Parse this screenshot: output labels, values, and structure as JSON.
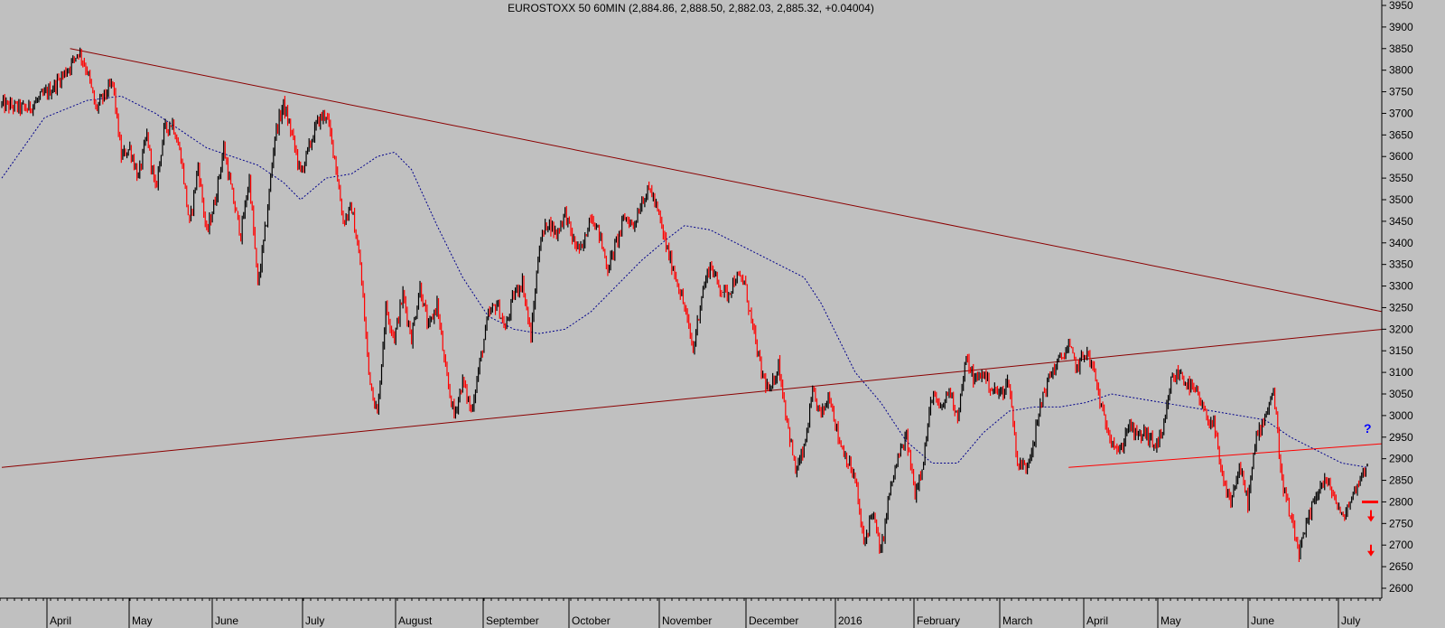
{
  "title": "EUROSTOXX 50 60MIN (2,884.86, 2,888.50, 2,882.03, 2,885.32, +0.04004)",
  "chart_data": {
    "type": "candlestick",
    "title": "EUROSTOXX 50 60MIN (2,884.86, 2,888.50, 2,882.03, 2,885.32, +0.04004)",
    "ylim": [
      2600,
      3950
    ],
    "y_ticks": [
      3950,
      3900,
      3850,
      3800,
      3750,
      3700,
      3650,
      3600,
      3550,
      3500,
      3450,
      3400,
      3350,
      3300,
      3250,
      3200,
      3150,
      3100,
      3050,
      3000,
      2950,
      2900,
      2850,
      2800,
      2750,
      2700,
      2650,
      2600
    ],
    "y_tick_labels": [
      "3950",
      "3900",
      "3850",
      "3800",
      "3750",
      "3700",
      "3650",
      "3600",
      "3550",
      "3500",
      "3450",
      "3400",
      "3350",
      "3300",
      "3250",
      "3200",
      "3150",
      "3100",
      "3050",
      "3000",
      "2950",
      "2900",
      "2850",
      "2800",
      "2750",
      "2700",
      "2650",
      "2600"
    ],
    "x_labels": [
      "April",
      "May",
      "June",
      "July",
      "August",
      "September",
      "October",
      "November",
      "December",
      "2016",
      "February",
      "March",
      "April",
      "May",
      "June",
      "July"
    ],
    "price_path": [
      [
        0,
        3720
      ],
      [
        3,
        3710
      ],
      [
        6,
        3760
      ],
      [
        8,
        3810
      ],
      [
        9,
        3845
      ],
      [
        10,
        3800
      ],
      [
        11,
        3710
      ],
      [
        12,
        3740
      ],
      [
        13,
        3770
      ],
      [
        14,
        3600
      ],
      [
        15,
        3620
      ],
      [
        16,
        3550
      ],
      [
        17,
        3650
      ],
      [
        18,
        3520
      ],
      [
        19,
        3660
      ],
      [
        20,
        3680
      ],
      [
        21,
        3600
      ],
      [
        22,
        3440
      ],
      [
        23,
        3580
      ],
      [
        24,
        3420
      ],
      [
        25,
        3500
      ],
      [
        26,
        3620
      ],
      [
        27,
        3510
      ],
      [
        28,
        3420
      ],
      [
        29,
        3550
      ],
      [
        30,
        3300
      ],
      [
        31,
        3450
      ],
      [
        32,
        3650
      ],
      [
        33,
        3720
      ],
      [
        34,
        3650
      ],
      [
        35,
        3560
      ],
      [
        36,
        3620
      ],
      [
        37,
        3680
      ],
      [
        38,
        3700
      ],
      [
        39,
        3600
      ],
      [
        40,
        3450
      ],
      [
        41,
        3480
      ],
      [
        42,
        3350
      ],
      [
        43,
        3100
      ],
      [
        44,
        3000
      ],
      [
        45,
        3250
      ],
      [
        46,
        3180
      ],
      [
        47,
        3280
      ],
      [
        48,
        3180
      ],
      [
        49,
        3300
      ],
      [
        50,
        3200
      ],
      [
        51,
        3260
      ],
      [
        52,
        3100
      ],
      [
        53,
        3000
      ],
      [
        54,
        3080
      ],
      [
        55,
        3010
      ],
      [
        56,
        3120
      ],
      [
        57,
        3230
      ],
      [
        58,
        3260
      ],
      [
        59,
        3200
      ],
      [
        60,
        3280
      ],
      [
        61,
        3310
      ],
      [
        62,
        3180
      ],
      [
        63,
        3400
      ],
      [
        64,
        3450
      ],
      [
        65,
        3420
      ],
      [
        66,
        3470
      ],
      [
        67,
        3400
      ],
      [
        68,
        3380
      ],
      [
        69,
        3470
      ],
      [
        70,
        3420
      ],
      [
        71,
        3340
      ],
      [
        72,
        3400
      ],
      [
        73,
        3460
      ],
      [
        74,
        3440
      ],
      [
        75,
        3500
      ],
      [
        76,
        3525
      ],
      [
        77,
        3460
      ],
      [
        78,
        3380
      ],
      [
        79,
        3320
      ],
      [
        80,
        3250
      ],
      [
        81,
        3150
      ],
      [
        82,
        3280
      ],
      [
        83,
        3350
      ],
      [
        84,
        3300
      ],
      [
        85,
        3280
      ],
      [
        86,
        3320
      ],
      [
        87,
        3310
      ],
      [
        88,
        3200
      ],
      [
        89,
        3100
      ],
      [
        90,
        3050
      ],
      [
        91,
        3120
      ],
      [
        92,
        2990
      ],
      [
        93,
        2870
      ],
      [
        94,
        2920
      ],
      [
        95,
        3050
      ],
      [
        96,
        3000
      ],
      [
        97,
        3050
      ],
      [
        98,
        2950
      ],
      [
        99,
        2900
      ],
      [
        100,
        2850
      ],
      [
        101,
        2700
      ],
      [
        102,
        2780
      ],
      [
        103,
        2680
      ],
      [
        104,
        2820
      ],
      [
        105,
        2900
      ],
      [
        106,
        2950
      ],
      [
        107,
        2820
      ],
      [
        108,
        2900
      ],
      [
        109,
        3050
      ],
      [
        110,
        3010
      ],
      [
        111,
        3060
      ],
      [
        112,
        3000
      ],
      [
        113,
        3130
      ],
      [
        114,
        3080
      ],
      [
        115,
        3100
      ],
      [
        116,
        3060
      ],
      [
        117,
        3050
      ],
      [
        118,
        3080
      ],
      [
        119,
        2890
      ],
      [
        120,
        2880
      ],
      [
        121,
        2950
      ],
      [
        122,
        3050
      ],
      [
        123,
        3100
      ],
      [
        124,
        3130
      ],
      [
        125,
        3160
      ],
      [
        126,
        3110
      ],
      [
        127,
        3150
      ],
      [
        128,
        3100
      ],
      [
        129,
        3000
      ],
      [
        130,
        2950
      ],
      [
        131,
        2910
      ],
      [
        132,
        2980
      ],
      [
        133,
        2950
      ],
      [
        134,
        2960
      ],
      [
        135,
        2930
      ],
      [
        136,
        2950
      ],
      [
        137,
        3080
      ],
      [
        138,
        3100
      ],
      [
        139,
        3070
      ],
      [
        140,
        3050
      ],
      [
        141,
        3000
      ],
      [
        142,
        2980
      ],
      [
        143,
        2850
      ],
      [
        144,
        2800
      ],
      [
        145,
        2880
      ],
      [
        146,
        2800
      ],
      [
        147,
        2950
      ],
      [
        148,
        3000
      ],
      [
        149,
        3060
      ],
      [
        150,
        2850
      ],
      [
        151,
        2760
      ],
      [
        152,
        2680
      ],
      [
        153,
        2750
      ],
      [
        154,
        2820
      ],
      [
        155,
        2850
      ],
      [
        156,
        2820
      ],
      [
        157,
        2760
      ],
      [
        158,
        2800
      ],
      [
        159,
        2850
      ],
      [
        160,
        2885
      ]
    ],
    "moving_average": [
      [
        0,
        3550
      ],
      [
        5,
        3690
      ],
      [
        10,
        3730
      ],
      [
        14,
        3740
      ],
      [
        18,
        3700
      ],
      [
        21,
        3660
      ],
      [
        24,
        3620
      ],
      [
        27,
        3600
      ],
      [
        30,
        3580
      ],
      [
        33,
        3540
      ],
      [
        35,
        3500
      ],
      [
        38,
        3550
      ],
      [
        41,
        3560
      ],
      [
        44,
        3600
      ],
      [
        46,
        3610
      ],
      [
        48,
        3570
      ],
      [
        51,
        3440
      ],
      [
        54,
        3320
      ],
      [
        57,
        3230
      ],
      [
        60,
        3200
      ],
      [
        63,
        3190
      ],
      [
        66,
        3200
      ],
      [
        69,
        3240
      ],
      [
        72,
        3300
      ],
      [
        75,
        3360
      ],
      [
        78,
        3410
      ],
      [
        80,
        3440
      ],
      [
        83,
        3430
      ],
      [
        86,
        3400
      ],
      [
        89,
        3370
      ],
      [
        92,
        3340
      ],
      [
        94,
        3320
      ],
      [
        96,
        3260
      ],
      [
        98,
        3180
      ],
      [
        100,
        3100
      ],
      [
        103,
        3030
      ],
      [
        106,
        2940
      ],
      [
        109,
        2890
      ],
      [
        112,
        2890
      ],
      [
        115,
        2960
      ],
      [
        118,
        3010
      ],
      [
        121,
        3020
      ],
      [
        124,
        3020
      ],
      [
        127,
        3030
      ],
      [
        130,
        3050
      ],
      [
        133,
        3040
      ],
      [
        136,
        3030
      ],
      [
        139,
        3020
      ],
      [
        142,
        3010
      ],
      [
        145,
        3000
      ],
      [
        148,
        2990
      ],
      [
        151,
        2950
      ],
      [
        154,
        2920
      ],
      [
        157,
        2890
      ],
      [
        160,
        2880
      ]
    ],
    "trendlines": [
      {
        "from": [
          8,
          3850
        ],
        "to": [
          160,
          3240
        ]
      },
      {
        "from": [
          0,
          2880
        ],
        "to": [
          160,
          3200
        ]
      },
      {
        "from": [
          125,
          2880
        ],
        "to": [
          160,
          2935
        ]
      }
    ],
    "markers": [
      {
        "value": 2800,
        "label": "level"
      },
      {
        "value": 2760,
        "label": "arrow"
      },
      {
        "value": 2680,
        "label": "arrow"
      },
      {
        "value": 2960,
        "label": "?"
      }
    ]
  },
  "colors": {
    "background": "#c0c0c0",
    "up_candle": "#000000",
    "down_candle": "#ff0000",
    "moving_average": "#00008b",
    "trendline": "#8b0000",
    "support_line": "#ff0000",
    "marker": "#ff0000",
    "question": "#0000ff"
  }
}
